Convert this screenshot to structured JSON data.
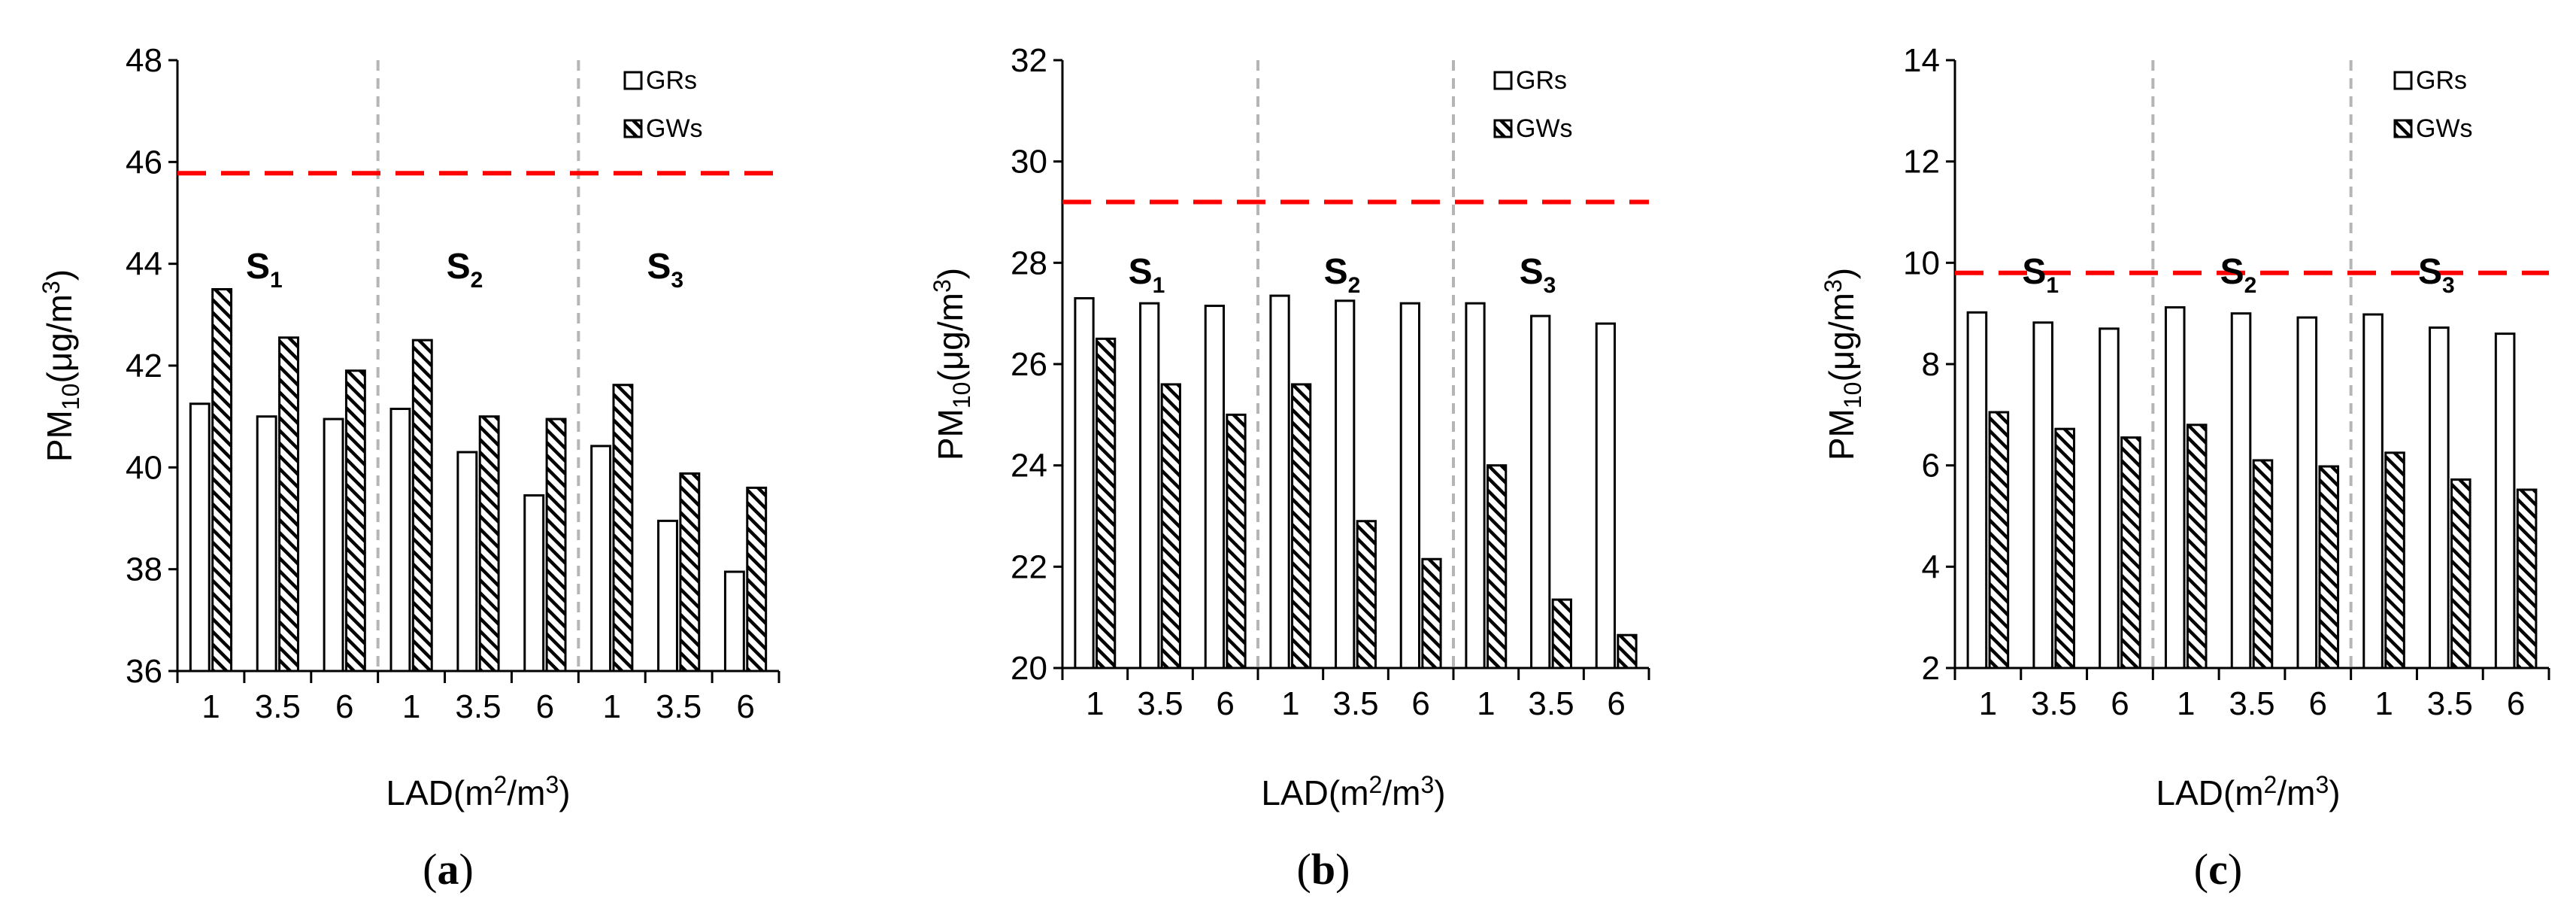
{
  "chart_data": [
    {
      "type": "bar",
      "panel_label": "a",
      "categories": [
        "1",
        "3.5",
        "6",
        "1",
        "3.5",
        "6",
        "1",
        "3.5",
        "6"
      ],
      "groups": [
        {
          "name": "S",
          "sub": "1"
        },
        {
          "name": "S",
          "sub": "2"
        },
        {
          "name": "S",
          "sub": "3"
        }
      ],
      "series": [
        {
          "name": "GRs",
          "pattern": "open",
          "values": [
            41.25,
            41.0,
            40.95,
            41.15,
            40.3,
            39.45,
            40.42,
            38.95,
            37.95
          ]
        },
        {
          "name": "GWs",
          "pattern": "hatched",
          "values": [
            43.5,
            42.55,
            41.9,
            42.5,
            41.0,
            40.95,
            41.62,
            39.88,
            39.6
          ]
        }
      ],
      "reference_line": {
        "value": 45.78,
        "color": "#ff0000",
        "style": "dashed"
      },
      "xlabel": "LAD(m²/m³)",
      "ylabel": "PM₁₀(μg/m³)",
      "ylim": [
        36,
        48
      ],
      "yticks": [
        36,
        38,
        40,
        42,
        44,
        46,
        48
      ],
      "legend": "top-right"
    },
    {
      "type": "bar",
      "panel_label": "b",
      "categories": [
        "1",
        "3.5",
        "6",
        "1",
        "3.5",
        "6",
        "1",
        "3.5",
        "6"
      ],
      "groups": [
        {
          "name": "S",
          "sub": "1"
        },
        {
          "name": "S",
          "sub": "2"
        },
        {
          "name": "S",
          "sub": "3"
        }
      ],
      "series": [
        {
          "name": "GRs",
          "pattern": "open",
          "values": [
            27.3,
            27.2,
            27.15,
            27.35,
            27.25,
            27.2,
            27.2,
            26.95,
            26.8
          ]
        },
        {
          "name": "GWs",
          "pattern": "hatched",
          "values": [
            26.5,
            25.6,
            25.0,
            25.6,
            22.9,
            22.15,
            24.0,
            21.35,
            20.65
          ]
        }
      ],
      "reference_line": {
        "value": 29.2,
        "color": "#ff0000",
        "style": "dashed"
      },
      "xlabel": "LAD(m²/m³)",
      "ylabel": "PM₁₀(μg/m³)",
      "ylim": [
        20,
        32
      ],
      "yticks": [
        20,
        22,
        24,
        26,
        28,
        30,
        32
      ],
      "legend": "top-right"
    },
    {
      "type": "bar",
      "panel_label": "c",
      "categories": [
        "1",
        "3.5",
        "6",
        "1",
        "3.5",
        "6",
        "1",
        "3.5",
        "6"
      ],
      "groups": [
        {
          "name": "S",
          "sub": "1"
        },
        {
          "name": "S",
          "sub": "2"
        },
        {
          "name": "S",
          "sub": "3"
        }
      ],
      "series": [
        {
          "name": "GRs",
          "pattern": "open",
          "values": [
            9.02,
            8.82,
            8.7,
            9.12,
            9.0,
            8.92,
            8.98,
            8.72,
            8.6
          ]
        },
        {
          "name": "GWs",
          "pattern": "hatched",
          "values": [
            7.05,
            6.72,
            6.55,
            6.8,
            6.1,
            5.98,
            6.25,
            5.72,
            5.52
          ]
        }
      ],
      "reference_line": {
        "value": 9.8,
        "color": "#ff0000",
        "style": "dashed"
      },
      "xlabel": "LAD(m²/m³)",
      "ylabel": "PM₁₀(μg/m³)",
      "ylim": [
        2,
        14
      ],
      "yticks": [
        2,
        4,
        6,
        8,
        10,
        12,
        14
      ],
      "legend": "top-right"
    }
  ]
}
